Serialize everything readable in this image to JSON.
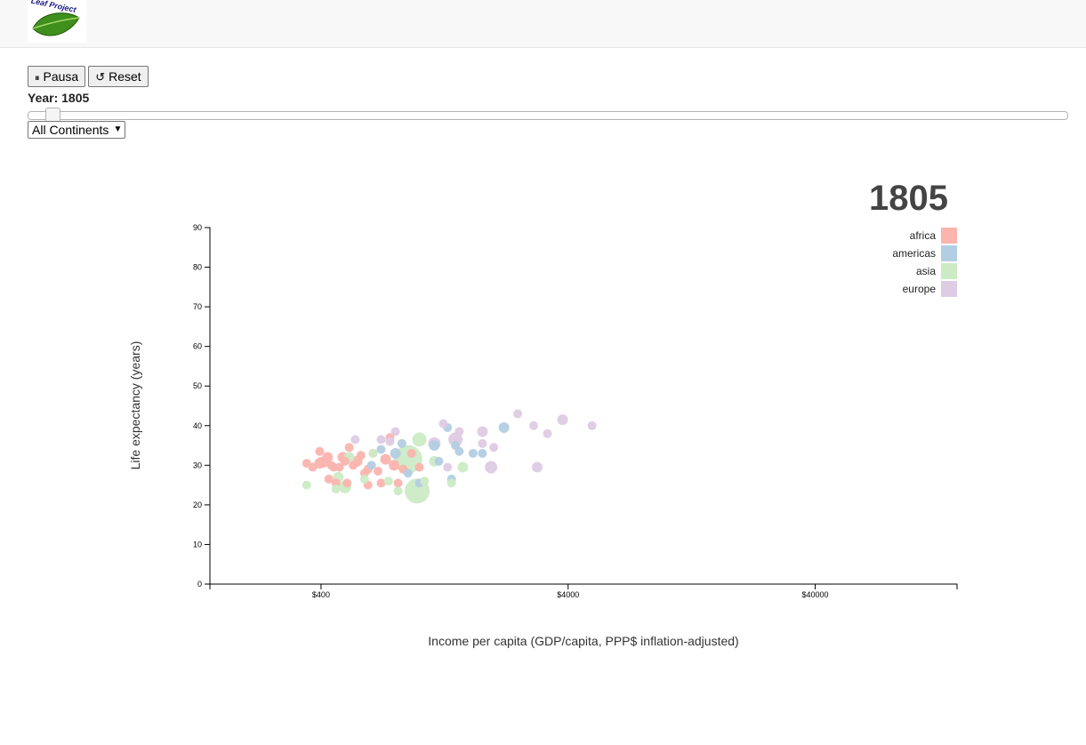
{
  "header": {
    "logo_text": "Leaf Project"
  },
  "controls": {
    "pause_label": "Pausa",
    "pause_icon": "pause-icon",
    "reset_label": "Reset",
    "reset_icon": "reset-icon",
    "year_label": "Year: 1805",
    "slider_value": 1805,
    "continent_select": "All Continents"
  },
  "colors": {
    "africa": "#fbb4ae",
    "americas": "#b3cde3",
    "asia": "#ccebc5",
    "europe": "#decbe4"
  },
  "chart_data": {
    "type": "scatter",
    "year_display": "1805",
    "xlabel": "Income per capita (GDP/capita, PPP$ inflation-adjusted)",
    "ylabel": "Life expectancy (years)",
    "xscale": "log",
    "xlim": [
      142,
      150000
    ],
    "ylim": [
      0,
      90
    ],
    "xticks": [
      400,
      4000,
      40000
    ],
    "xtick_labels": [
      "$400",
      "$4000",
      "$40000"
    ],
    "yticks": [
      0,
      10,
      20,
      30,
      40,
      50,
      60,
      70,
      80,
      90
    ],
    "legend": [
      "africa",
      "americas",
      "asia",
      "europe"
    ],
    "legend_position": "top-right",
    "grid": false,
    "points": [
      {
        "c": "africa",
        "x": 350,
        "y": 30.5,
        "r": 5
      },
      {
        "c": "africa",
        "x": 370,
        "y": 29.5,
        "r": 5
      },
      {
        "c": "africa",
        "x": 395,
        "y": 33.5,
        "r": 5
      },
      {
        "c": "africa",
        "x": 400,
        "y": 31,
        "r": 5
      },
      {
        "c": "africa",
        "x": 410,
        "y": 30.5,
        "r": 5
      },
      {
        "c": "africa",
        "x": 425,
        "y": 32,
        "r": 6
      },
      {
        "c": "africa",
        "x": 440,
        "y": 30,
        "r": 5
      },
      {
        "c": "africa",
        "x": 450,
        "y": 29.5,
        "r": 5
      },
      {
        "c": "africa",
        "x": 460,
        "y": 25.5,
        "r": 5
      },
      {
        "c": "africa",
        "x": 475,
        "y": 29.5,
        "r": 5
      },
      {
        "c": "africa",
        "x": 490,
        "y": 32,
        "r": 6
      },
      {
        "c": "africa",
        "x": 500,
        "y": 31,
        "r": 5
      },
      {
        "c": "africa",
        "x": 510,
        "y": 25.5,
        "r": 5
      },
      {
        "c": "africa",
        "x": 520,
        "y": 34.5,
        "r": 5
      },
      {
        "c": "africa",
        "x": 540,
        "y": 30,
        "r": 5
      },
      {
        "c": "africa",
        "x": 560,
        "y": 31,
        "r": 6
      },
      {
        "c": "africa",
        "x": 580,
        "y": 32.5,
        "r": 5
      },
      {
        "c": "africa",
        "x": 600,
        "y": 28,
        "r": 5
      },
      {
        "c": "africa",
        "x": 620,
        "y": 29,
        "r": 5
      },
      {
        "c": "africa",
        "x": 650,
        "y": 33,
        "r": 5
      },
      {
        "c": "africa",
        "x": 680,
        "y": 28.5,
        "r": 5
      },
      {
        "c": "africa",
        "x": 700,
        "y": 25.5,
        "r": 5
      },
      {
        "c": "africa",
        "x": 730,
        "y": 31.5,
        "r": 6
      },
      {
        "c": "africa",
        "x": 760,
        "y": 37,
        "r": 5
      },
      {
        "c": "africa",
        "x": 790,
        "y": 30,
        "r": 6
      },
      {
        "c": "africa",
        "x": 820,
        "y": 25.5,
        "r": 5
      },
      {
        "c": "africa",
        "x": 860,
        "y": 29,
        "r": 5
      },
      {
        "c": "africa",
        "x": 930,
        "y": 33,
        "r": 5
      },
      {
        "c": "africa",
        "x": 1000,
        "y": 29.5,
        "r": 5
      },
      {
        "c": "africa",
        "x": 430,
        "y": 26.5,
        "r": 5
      },
      {
        "c": "africa",
        "x": 620,
        "y": 25,
        "r": 5
      },
      {
        "c": "africa",
        "x": 395,
        "y": 30.5,
        "r": 6
      },
      {
        "c": "americas",
        "x": 640,
        "y": 30,
        "r": 5
      },
      {
        "c": "americas",
        "x": 700,
        "y": 34,
        "r": 5
      },
      {
        "c": "americas",
        "x": 800,
        "y": 33,
        "r": 6
      },
      {
        "c": "americas",
        "x": 850,
        "y": 35.5,
        "r": 5
      },
      {
        "c": "americas",
        "x": 900,
        "y": 28,
        "r": 5
      },
      {
        "c": "americas",
        "x": 1000,
        "y": 25.5,
        "r": 5
      },
      {
        "c": "americas",
        "x": 1150,
        "y": 35,
        "r": 6
      },
      {
        "c": "americas",
        "x": 1200,
        "y": 31,
        "r": 5
      },
      {
        "c": "americas",
        "x": 1300,
        "y": 39.5,
        "r": 5
      },
      {
        "c": "americas",
        "x": 1350,
        "y": 26.5,
        "r": 5
      },
      {
        "c": "americas",
        "x": 1400,
        "y": 35,
        "r": 5
      },
      {
        "c": "americas",
        "x": 1450,
        "y": 33.5,
        "r": 5
      },
      {
        "c": "americas",
        "x": 1650,
        "y": 33,
        "r": 5
      },
      {
        "c": "americas",
        "x": 1800,
        "y": 33,
        "r": 5
      },
      {
        "c": "americas",
        "x": 2200,
        "y": 39.5,
        "r": 6
      },
      {
        "c": "asia",
        "x": 350,
        "y": 25,
        "r": 5
      },
      {
        "c": "asia",
        "x": 470,
        "y": 27,
        "r": 6
      },
      {
        "c": "asia",
        "x": 500,
        "y": 24.5,
        "r": 7
      },
      {
        "c": "asia",
        "x": 520,
        "y": 32,
        "r": 6
      },
      {
        "c": "asia",
        "x": 600,
        "y": 26.5,
        "r": 5
      },
      {
        "c": "asia",
        "x": 650,
        "y": 33,
        "r": 5
      },
      {
        "c": "asia",
        "x": 750,
        "y": 26,
        "r": 5
      },
      {
        "c": "asia",
        "x": 820,
        "y": 23.5,
        "r": 5
      },
      {
        "c": "asia",
        "x": 900,
        "y": 31.5,
        "r": 16
      },
      {
        "c": "asia",
        "x": 980,
        "y": 23.5,
        "r": 14
      },
      {
        "c": "asia",
        "x": 1000,
        "y": 36.5,
        "r": 8
      },
      {
        "c": "asia",
        "x": 1050,
        "y": 26,
        "r": 5
      },
      {
        "c": "asia",
        "x": 1150,
        "y": 31,
        "r": 6
      },
      {
        "c": "asia",
        "x": 1350,
        "y": 25.5,
        "r": 5
      },
      {
        "c": "asia",
        "x": 1500,
        "y": 29.5,
        "r": 6
      },
      {
        "c": "asia",
        "x": 460,
        "y": 24,
        "r": 5
      },
      {
        "c": "europe",
        "x": 550,
        "y": 36.5,
        "r": 5
      },
      {
        "c": "europe",
        "x": 700,
        "y": 36.5,
        "r": 5
      },
      {
        "c": "europe",
        "x": 760,
        "y": 36,
        "r": 5
      },
      {
        "c": "europe",
        "x": 800,
        "y": 38.5,
        "r": 5
      },
      {
        "c": "europe",
        "x": 1150,
        "y": 35.5,
        "r": 7
      },
      {
        "c": "europe",
        "x": 1250,
        "y": 40.5,
        "r": 5
      },
      {
        "c": "europe",
        "x": 1400,
        "y": 36.5,
        "r": 8
      },
      {
        "c": "europe",
        "x": 1450,
        "y": 38.5,
        "r": 5
      },
      {
        "c": "europe",
        "x": 1300,
        "y": 29.5,
        "r": 5
      },
      {
        "c": "europe",
        "x": 1800,
        "y": 38.5,
        "r": 6
      },
      {
        "c": "europe",
        "x": 1800,
        "y": 35.5,
        "r": 5
      },
      {
        "c": "europe",
        "x": 1950,
        "y": 29.5,
        "r": 7
      },
      {
        "c": "europe",
        "x": 2000,
        "y": 34.5,
        "r": 5
      },
      {
        "c": "europe",
        "x": 2500,
        "y": 43,
        "r": 5
      },
      {
        "c": "europe",
        "x": 2900,
        "y": 40,
        "r": 5
      },
      {
        "c": "europe",
        "x": 3000,
        "y": 29.5,
        "r": 6
      },
      {
        "c": "europe",
        "x": 3300,
        "y": 38,
        "r": 5
      },
      {
        "c": "europe",
        "x": 3800,
        "y": 41.5,
        "r": 6
      },
      {
        "c": "europe",
        "x": 5000,
        "y": 40,
        "r": 5
      }
    ]
  }
}
